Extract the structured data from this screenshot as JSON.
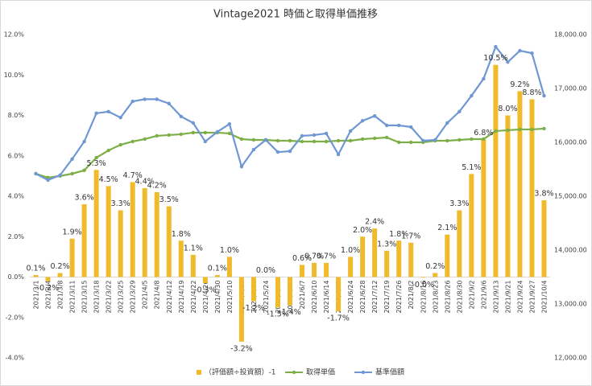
{
  "chart_data": {
    "type": "combo",
    "title": "Vintage2021 時価と取得単価推移",
    "categories": [
      "2021/3/1",
      "2021/3/4",
      "2021/3/8",
      "2021/3/11",
      "2021/3/15",
      "2021/3/18",
      "2021/3/22",
      "2021/3/25",
      "2021/3/29",
      "2021/4/5",
      "2021/4/8",
      "2021/4/12",
      "2021/4/19",
      "2021/4/22",
      "2021/4/26",
      "2021/4/30",
      "2021/5/10",
      "2021/5/17",
      "2021/5/20",
      "2021/5/24",
      "2021/5/27",
      "2021/5/31",
      "2021/6/7",
      "2021/6/10",
      "2021/6/14",
      "2021/6/21",
      "2021/6/24",
      "2021/6/28",
      "2021/7/12",
      "2021/7/19",
      "2021/7/26",
      "2021/8/2",
      "2021/8/16",
      "2021/8/23",
      "2021/8/26",
      "2021/8/30",
      "2021/9/2",
      "2021/9/6",
      "2021/9/13",
      "2021/9/21",
      "2021/9/24",
      "2021/9/27",
      "2021/10/4"
    ],
    "series": [
      {
        "name": "（評価額÷投資額）-1",
        "type": "bar",
        "color": "#efbb2b",
        "values": [
          0.1,
          -0.2,
          0.2,
          1.9,
          3.6,
          5.3,
          4.5,
          3.3,
          4.7,
          4.4,
          4.2,
          3.5,
          1.8,
          1.1,
          -0.3,
          0.1,
          1.0,
          -3.2,
          -1.2,
          0.0,
          -1.5,
          -1.4,
          0.6,
          0.7,
          0.7,
          -1.7,
          1.0,
          2.0,
          2.4,
          1.3,
          1.8,
          1.7,
          -0.03,
          0.2,
          2.1,
          3.3,
          5.1,
          6.8,
          10.5,
          8.0,
          9.2,
          8.8,
          3.8
        ],
        "value_labels": [
          "0.1%",
          "-0.2%",
          "0.2%",
          "1.9%",
          "3.6%",
          "5.3%",
          "4.5%",
          "3.3%",
          "4.7%",
          "4.4%",
          "4.2%",
          "3.5%",
          "1.8%",
          "1.1%",
          "-0.3%",
          "0.1%",
          "1.0%",
          "-3.2%",
          "-1.2%",
          "0.0%",
          "-1.5%",
          "-1.4%",
          "0.6%",
          "0.7%",
          "0.7%",
          "-1.7%",
          "1.0%",
          "2.0%",
          "2.4%",
          "1.3%",
          "1.8%",
          "1.7%",
          "-0.0%",
          "0.2%",
          "2.1%",
          "3.3%",
          "5.1%",
          "6.8%",
          "10.5%",
          "8.0%",
          "9.2%",
          "8.8%",
          "3.8%"
        ]
      },
      {
        "name": "取得単価",
        "type": "line",
        "axis": "y2",
        "color": "#7dae47",
        "values": [
          15418,
          15345,
          15375,
          15418,
          15480,
          15715,
          15850,
          15955,
          16015,
          16060,
          16120,
          16135,
          16150,
          16180,
          16180,
          16180,
          16165,
          16060,
          16045,
          16045,
          16030,
          16030,
          16015,
          16015,
          16015,
          16030,
          16030,
          16060,
          16075,
          16090,
          16000,
          16000,
          16000,
          16030,
          16030,
          16045,
          16060,
          16060,
          16210,
          16225,
          16240,
          16240,
          16255
        ]
      },
      {
        "name": "基準価額",
        "type": "line",
        "axis": "y2",
        "color": "#6f97d3",
        "values": [
          15418,
          15300,
          15390,
          15690,
          16015,
          16540,
          16570,
          16460,
          16760,
          16800,
          16800,
          16720,
          16480,
          16360,
          16015,
          16195,
          16340,
          15550,
          15865,
          16045,
          15820,
          15835,
          16120,
          16135,
          16165,
          15775,
          16210,
          16400,
          16490,
          16315,
          16315,
          16285,
          16030,
          16045,
          16360,
          16570,
          16865,
          17180,
          17775,
          17490,
          17700,
          17655,
          16865
        ]
      }
    ],
    "ylim": [
      -4,
      12
    ],
    "yticks": [
      {
        "value": -4,
        "label": "-4.0%"
      },
      {
        "value": -2,
        "label": "-2.0%"
      },
      {
        "value": 0,
        "label": "0.0%"
      },
      {
        "value": 2,
        "label": "2.0%"
      },
      {
        "value": 4,
        "label": "4.0%"
      },
      {
        "value": 6,
        "label": "6.0%"
      },
      {
        "value": 8,
        "label": "8.0%"
      },
      {
        "value": 10,
        "label": "10.0%"
      },
      {
        "value": 12,
        "label": "12.0%"
      }
    ],
    "y2lim": [
      12000,
      18000
    ],
    "y2ticks": [
      {
        "value": 12000,
        "label": "12,000.00"
      },
      {
        "value": 13000,
        "label": "13,000.00"
      },
      {
        "value": 14000,
        "label": "14,000.00"
      },
      {
        "value": 15000,
        "label": "15,000.00"
      },
      {
        "value": 16000,
        "label": "16,000.00"
      },
      {
        "value": 17000,
        "label": "17,000.00"
      },
      {
        "value": 18000,
        "label": "18,000.00"
      }
    ],
    "grid": false,
    "legend": "bottom"
  }
}
